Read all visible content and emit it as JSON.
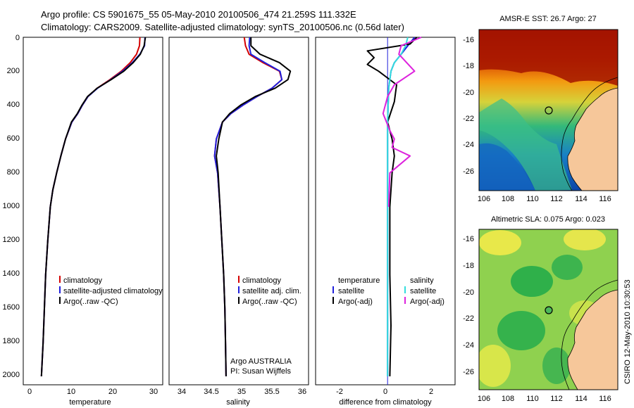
{
  "header": {
    "line1": "Argo profile: CS 5901675_55 05-May-2010 20100506_474 21.259S 111.332E",
    "line2": "Climatology: CARS2009. Satellite-adjusted climatology: synTS_20100506.nc (0.56d later)"
  },
  "side_stamp": "CSIRO 12-May-2010 10:30:53",
  "colors": {
    "climatology": "#d40000",
    "satellite": "#1f1fdc",
    "argo": "#000000",
    "sat_salinity": "#33dddd",
    "argo_salinity": "#dd22dd"
  },
  "chart_data": [
    {
      "type": "line",
      "id": "temperature",
      "xlabel": "temperature",
      "xlim": [
        -2,
        31
      ],
      "ylim": [
        0,
        2050
      ],
      "y_reversed": true,
      "x_ticks": [
        0,
        10,
        20,
        30
      ],
      "y_ticks": [
        0,
        200,
        400,
        600,
        800,
        1000,
        1200,
        1400,
        1600,
        1800,
        2000
      ],
      "legend": [
        "climatology",
        "satellite-adjusted climatology",
        "Argo(..raw -QC)"
      ],
      "series": [
        {
          "name": "climatology",
          "color": "#d40000",
          "x": [
            25.6,
            25.5,
            24.8,
            23.3,
            21.2,
            18.5,
            15.5,
            13.3,
            12.0,
            10.9,
            9.5,
            8.0,
            6.9,
            5.9,
            5.0,
            4.4,
            3.8,
            3.3,
            3.0,
            2.7,
            2.5,
            2.3
          ],
          "y": [
            0,
            50,
            100,
            150,
            200,
            250,
            300,
            350,
            400,
            450,
            500,
            600,
            700,
            800,
            900,
            1000,
            1200,
            1400,
            1600,
            1800,
            1900,
            2000
          ]
        },
        {
          "name": "satellite-adjusted climatology",
          "color": "#1f1fdc",
          "x": [
            26.8,
            26.7,
            25.6,
            23.8,
            21.5,
            18.7,
            15.6,
            13.3,
            12.0,
            10.9,
            9.5,
            8.0,
            6.9,
            5.9,
            5.0,
            4.4,
            3.8,
            3.3,
            3.0,
            2.7,
            2.5,
            2.3
          ],
          "y": [
            0,
            50,
            100,
            150,
            200,
            250,
            300,
            350,
            400,
            450,
            500,
            600,
            700,
            800,
            900,
            1000,
            1200,
            1400,
            1600,
            1800,
            1900,
            2000
          ]
        },
        {
          "name": "Argo(..raw -QC)",
          "color": "#000000",
          "x": [
            26.9,
            26.6,
            25.7,
            24.0,
            21.8,
            18.8,
            15.5,
            13.2,
            11.9,
            10.8,
            9.4,
            8.0,
            6.9,
            5.9,
            5.0,
            4.4,
            3.8,
            3.3,
            3.0,
            2.7,
            2.5,
            2.3
          ],
          "y": [
            0,
            50,
            100,
            150,
            200,
            250,
            300,
            350,
            400,
            450,
            500,
            600,
            700,
            800,
            900,
            1000,
            1200,
            1400,
            1600,
            1800,
            1900,
            2000
          ]
        }
      ]
    },
    {
      "type": "line",
      "id": "salinity",
      "xlabel": "salinity",
      "xlim": [
        33.8,
        36.1
      ],
      "ylim": [
        0,
        2050
      ],
      "y_reversed": true,
      "x_ticks": [
        34,
        34.5,
        35,
        35.5,
        36
      ],
      "legend": [
        "climatology",
        "satellite adj. clim.",
        "Argo(..raw -QC)"
      ],
      "note": [
        "Argo AUSTRALIA",
        "PI: Susan Wijffels"
      ],
      "series": [
        {
          "name": "climatology",
          "color": "#d40000",
          "x": [
            35.04,
            35.06,
            35.12,
            35.35,
            35.62,
            35.66,
            35.5,
            35.25,
            35.02,
            34.82,
            34.68,
            34.58,
            34.55,
            34.6,
            34.64,
            34.67,
            34.7,
            34.72,
            34.73,
            34.74
          ],
          "y": [
            0,
            50,
            100,
            150,
            200,
            250,
            300,
            350,
            400,
            450,
            500,
            600,
            700,
            800,
            1000,
            1200,
            1400,
            1600,
            1800,
            2000
          ]
        },
        {
          "name": "satellite adj. clim.",
          "color": "#1f1fdc",
          "x": [
            35.13,
            35.12,
            35.15,
            35.38,
            35.63,
            35.66,
            35.5,
            35.25,
            35.02,
            34.82,
            34.68,
            34.58,
            34.55,
            34.6,
            34.64,
            34.67,
            34.7,
            34.72,
            34.73,
            34.74
          ],
          "y": [
            0,
            50,
            100,
            150,
            200,
            250,
            300,
            350,
            400,
            450,
            500,
            600,
            700,
            800,
            1000,
            1200,
            1400,
            1600,
            1800,
            2000
          ]
        },
        {
          "name": "Argo(..raw -QC)",
          "color": "#000000",
          "x": [
            35.15,
            35.15,
            35.3,
            35.62,
            35.8,
            35.76,
            35.55,
            35.22,
            34.98,
            34.8,
            34.68,
            34.62,
            34.58,
            34.61,
            34.64,
            34.67,
            34.7,
            34.72,
            34.73,
            34.74
          ],
          "y": [
            0,
            50,
            100,
            150,
            200,
            250,
            300,
            350,
            400,
            450,
            500,
            600,
            700,
            800,
            1000,
            1200,
            1400,
            1600,
            1800,
            2000
          ]
        }
      ]
    },
    {
      "type": "line",
      "id": "difference",
      "xlabel": "difference from climatology",
      "xlim": [
        -3.2,
        3.0
      ],
      "ylim": [
        0,
        2050
      ],
      "y_reversed": true,
      "x_ticks": [
        -2,
        0,
        2
      ],
      "legend_left_title": "temperature",
      "legend_left": [
        "satellite",
        "Argo(-adj)"
      ],
      "legend_right_title": "salinity",
      "legend_right": [
        "satellite",
        "Argo(-adj)"
      ],
      "series": [
        {
          "name": "temperature satellite",
          "color": "#1f1fdc",
          "x": [
            1.2,
            0.9,
            0.6,
            0.3,
            0.15,
            0.05,
            0.0,
            0.0,
            0.0,
            0.0,
            0.0,
            0.0
          ],
          "y": [
            0,
            50,
            100,
            150,
            200,
            300,
            500,
            800,
            1200,
            1600,
            1800,
            2000
          ]
        },
        {
          "name": "temperature Argo(-adj)",
          "color": "#000000",
          "x": [
            1.3,
            1.0,
            -0.9,
            -0.6,
            -0.9,
            -0.4,
            0.4,
            0.3,
            0.0,
            0.2,
            0.3,
            0.2,
            0.1,
            0.1,
            0.1,
            0.15,
            0.1
          ],
          "y": [
            0,
            40,
            80,
            120,
            160,
            200,
            280,
            380,
            500,
            600,
            700,
            800,
            1000,
            1200,
            1400,
            1700,
            2000
          ]
        },
        {
          "name": "salinity satellite",
          "color": "#33dddd",
          "x": [
            0.9,
            0.8,
            0.6,
            0.3,
            0.15,
            0.05,
            0.0,
            0.0,
            0.0,
            0.0,
            0.0
          ],
          "y": [
            0,
            50,
            100,
            150,
            200,
            300,
            500,
            800,
            1200,
            1600,
            2000
          ]
        },
        {
          "name": "salinity Argo(-adj)",
          "color": "#dd22dd",
          "x": [
            1.5,
            0.6,
            0.5,
            1.2,
            0.3,
            0.0,
            -0.2,
            0.1,
            0.3,
            0.2,
            1.0,
            0.1,
            0.05
          ],
          "y": [
            0,
            50,
            100,
            200,
            280,
            350,
            450,
            550,
            600,
            650,
            700,
            800,
            1000
          ]
        }
      ]
    },
    {
      "type": "heatmap",
      "id": "sst_map",
      "title": "AMSR-E SST: 26.7 Argo: 27",
      "xlim": [
        105.6,
        117
      ],
      "ylim": [
        -27.6,
        -15.2
      ],
      "x_ticks": [
        106,
        108,
        110,
        112,
        114,
        116
      ],
      "y_ticks": [
        -16,
        -18,
        -20,
        -22,
        -24,
        -26
      ],
      "marker": {
        "lon": 111.332,
        "lat": -21.259
      }
    },
    {
      "type": "heatmap",
      "id": "sla_map",
      "title": "Altimetric SLA: 0.075 Argo: 0.023",
      "xlim": [
        105.6,
        117
      ],
      "ylim": [
        -27.2,
        -14.8
      ],
      "x_ticks": [
        106,
        108,
        110,
        112,
        114,
        116
      ],
      "y_ticks": [
        -16,
        -18,
        -20,
        -22,
        -24,
        -26
      ],
      "marker": {
        "lon": 111.332,
        "lat": -21.259
      }
    }
  ]
}
